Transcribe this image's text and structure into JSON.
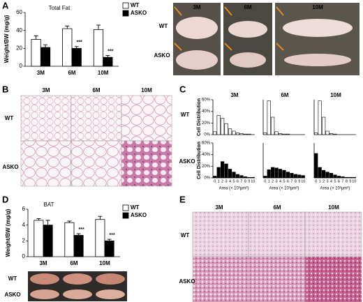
{
  "panels": {
    "A": {
      "letter": "A",
      "columns": [
        "3M",
        "6M",
        "10M"
      ],
      "rows": [
        "WT",
        "ASKO"
      ]
    },
    "B": {
      "letter": "B",
      "columns": [
        "3M",
        "6M",
        "10M"
      ],
      "rows": [
        "WT",
        "ASKO"
      ]
    },
    "C": {
      "letter": "C",
      "columns": [
        "3M",
        "6M",
        "10M"
      ],
      "rows": [
        "WT",
        "ASKO"
      ]
    },
    "D": {
      "letter": "D",
      "rows": [
        "WT",
        "ASKO"
      ]
    },
    "E": {
      "letter": "E",
      "columns": [
        "3M",
        "6M",
        "10M"
      ],
      "rows": [
        "WT",
        "ASKO"
      ]
    }
  },
  "chart_data": [
    {
      "type": "bar",
      "title": "Total Fat",
      "y_label": "Weight/BW (mg/g)",
      "categories": [
        "3M",
        "6M",
        "10M"
      ],
      "series": [
        {
          "name": "WT",
          "color": "#ffffff",
          "values": [
            30,
            42,
            41
          ],
          "errors": [
            4,
            3,
            5
          ]
        },
        {
          "name": "ASKO",
          "color": "#000000",
          "values": [
            21,
            20,
            10
          ],
          "errors": [
            3,
            2,
            2
          ],
          "significance": [
            null,
            "***",
            "***"
          ]
        }
      ],
      "ylim": [
        0,
        60
      ],
      "yticks": [
        0,
        20,
        40,
        60
      ]
    },
    {
      "type": "bar",
      "title": "BAT",
      "y_label": "Weight/BW (mg/g)",
      "categories": [
        "3M",
        "6M",
        "10M"
      ],
      "series": [
        {
          "name": "WT",
          "color": "#ffffff",
          "values": [
            4.6,
            4.3,
            4.7
          ],
          "errors": [
            0.2,
            0.2,
            0.4
          ]
        },
        {
          "name": "ASKO",
          "color": "#000000",
          "values": [
            4.0,
            2.7,
            2.0
          ],
          "errors": [
            0.6,
            0.2,
            0.2
          ],
          "significance": [
            null,
            "***",
            "***"
          ]
        }
      ],
      "ylim": [
        0,
        6
      ],
      "yticks": [
        0,
        2,
        4,
        6
      ]
    },
    {
      "type": "bar",
      "y_label": "Cell Distribution",
      "color": "#ffffff",
      "values": [
        5,
        33,
        28,
        19,
        10,
        6,
        3,
        2,
        1,
        1,
        0
      ],
      "ylim": [
        0,
        60
      ],
      "yticks": [
        {
          "value": 0,
          "label": "0%"
        },
        {
          "value": 20,
          "label": "20%"
        },
        {
          "value": 40,
          "label": "40%"
        },
        {
          "value": 60,
          "label": "60%"
        }
      ]
    },
    {
      "type": "bar",
      "color": "#ffffff",
      "values": [
        3,
        58,
        30,
        5,
        2,
        1,
        1,
        0,
        0,
        0,
        0
      ],
      "ylim": [
        0,
        60
      ]
    },
    {
      "type": "bar",
      "color": "#ffffff",
      "values": [
        3,
        58,
        30,
        6,
        2,
        1,
        0,
        0,
        0,
        0,
        0
      ],
      "ylim": [
        0,
        60
      ]
    },
    {
      "type": "bar",
      "y_label": "Cell Distribution",
      "x_label": "Area (× 10³μm²)",
      "color": "#000000",
      "categories": [
        "0",
        "1",
        "2",
        "3",
        "4",
        "5",
        "6",
        "7",
        "8",
        "9",
        "10"
      ],
      "values": [
        3,
        18,
        28,
        24,
        15,
        10,
        6,
        4,
        2,
        1,
        1
      ],
      "ylim": [
        0,
        60
      ],
      "yticks": [
        {
          "value": 0,
          "label": "0%"
        },
        {
          "value": 20,
          "label": "20%"
        },
        {
          "value": 40,
          "label": "40%"
        },
        {
          "value": 60,
          "label": "60%"
        }
      ]
    },
    {
      "type": "bar",
      "x_label": "Area (× 10³μm²)",
      "color": "#000000",
      "categories": [
        "0",
        "1",
        "2",
        "3",
        "4",
        "5",
        "6",
        "7",
        "8",
        "9",
        "10"
      ],
      "values": [
        3,
        14,
        18,
        17,
        15,
        13,
        10,
        8,
        6,
        5,
        4
      ],
      "ylim": [
        0,
        60
      ]
    },
    {
      "type": "bar",
      "x_label": "Area (× 10³μm²)",
      "color": "#000000",
      "categories": [
        "0",
        "1",
        "2",
        "3",
        "4",
        "5",
        "6",
        "7",
        "8",
        "9",
        "10"
      ],
      "values": [
        42,
        18,
        13,
        10,
        8,
        5,
        3,
        2,
        1,
        1,
        1
      ],
      "ylim": [
        0,
        60
      ]
    }
  ]
}
